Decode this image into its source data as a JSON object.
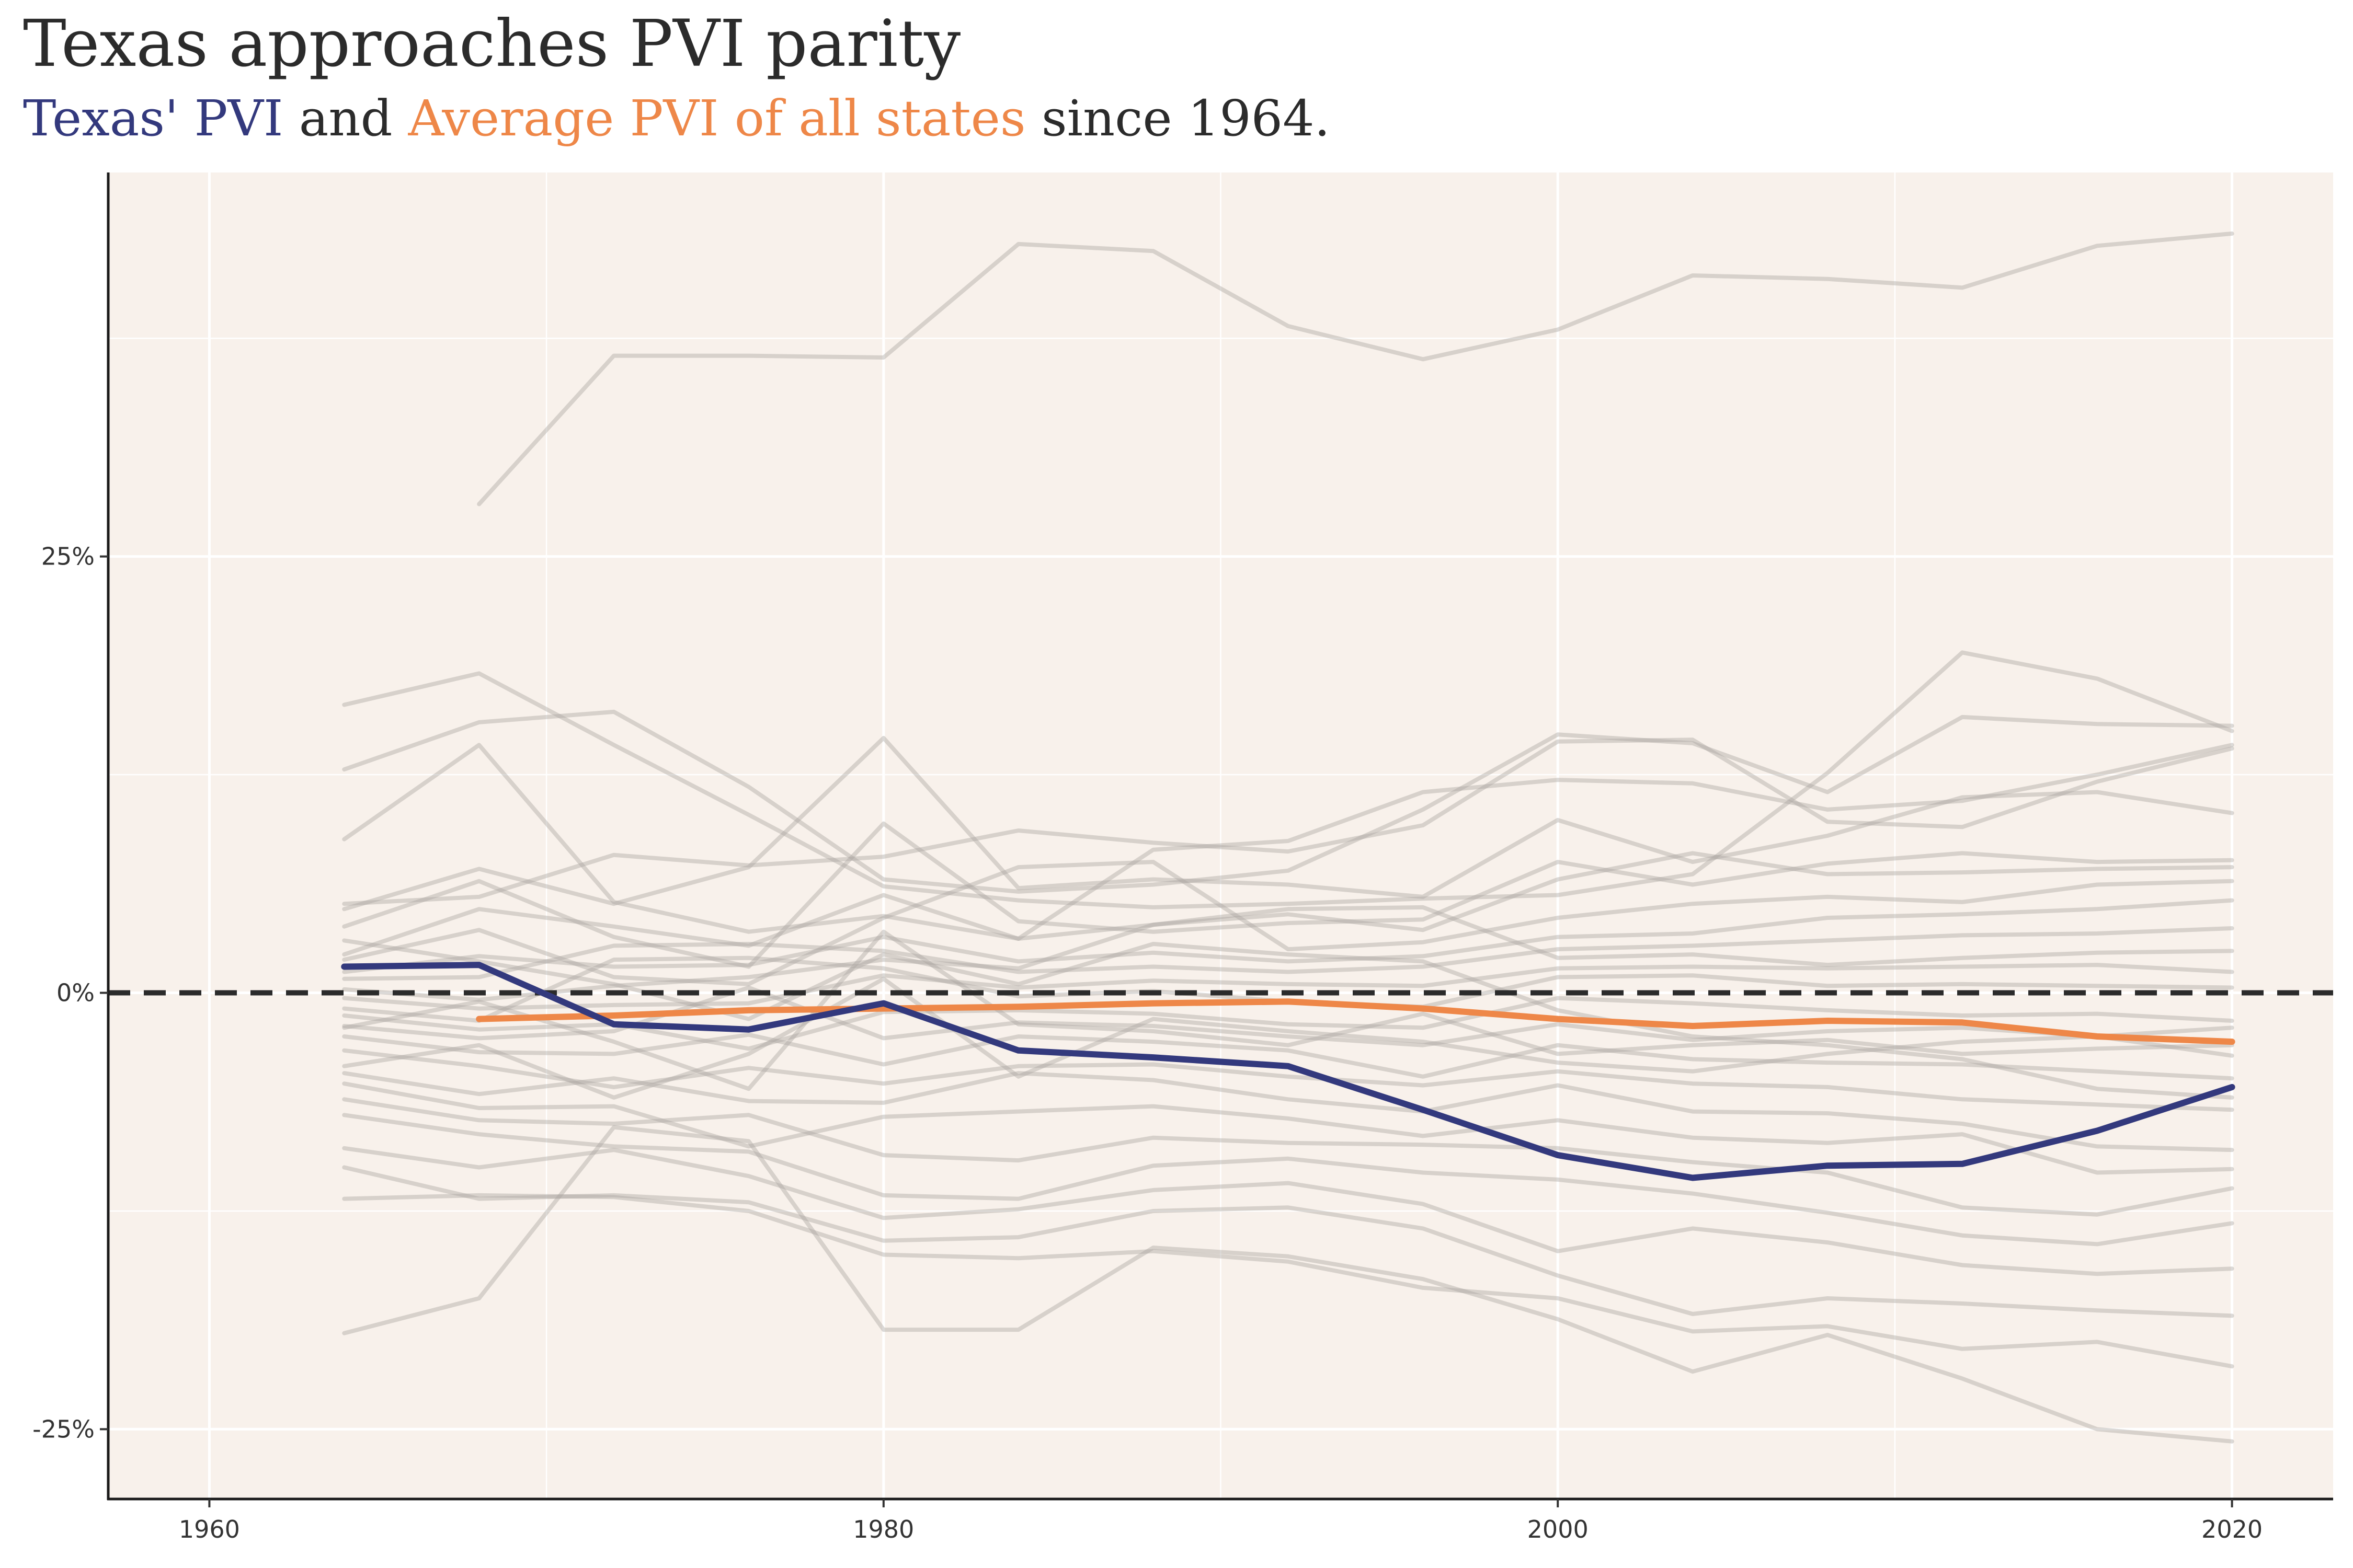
{
  "header": {
    "title": "Texas approaches PVI parity",
    "subtitle_tx": "Texas' PVI",
    "subtitle_and": " and ",
    "subtitle_avg": "Average PVI of all states",
    "subtitle_tail": " since 1964."
  },
  "colors": {
    "texas": "#33397d",
    "average": "#ee8748",
    "states": "#a9a59f",
    "panel": "#f8f1eb",
    "grid": "#ffffff",
    "zero_line": "#2b2b2b"
  },
  "chart_data": {
    "type": "line",
    "title": "Texas approaches PVI parity",
    "subtitle": "Texas' PVI and Average PVI of all states since 1964.",
    "xlabel": "",
    "ylabel": "",
    "xlim": [
      1957,
      2023
    ],
    "ylim": [
      -29,
      47
    ],
    "x_ticks": [
      1960,
      1980,
      2000,
      2020
    ],
    "x_tick_labels": [
      "1960",
      "1980",
      "2000",
      "2020"
    ],
    "y_ticks": [
      -25,
      0,
      25
    ],
    "y_tick_labels": [
      "-25%",
      "0%",
      "25%"
    ],
    "grid": true,
    "reference_line": {
      "y": 0,
      "style": "dashed"
    },
    "x": [
      1964,
      1968,
      1972,
      1976,
      1980,
      1984,
      1988,
      1992,
      1996,
      2000,
      2004,
      2008,
      2012,
      2016,
      2020
    ],
    "highlight_series": [
      {
        "name": "Texas' PVI",
        "values": [
          1.5,
          1.6,
          -1.8,
          -2.1,
          -0.6,
          -3.3,
          -3.7,
          -4.2,
          -6.7,
          -9.3,
          -10.6,
          -9.9,
          -9.8,
          -7.9,
          -5.4
        ]
      },
      {
        "name": "Average PVI of all states",
        "values": [
          null,
          -1.5,
          -1.3,
          -1.0,
          -0.9,
          -0.8,
          -0.6,
          -0.5,
          -0.9,
          -1.5,
          -1.9,
          -1.6,
          -1.7,
          -2.5,
          -2.8
        ]
      }
    ],
    "background_series": [
      {
        "values": [
          null,
          28.0,
          36.5,
          36.5,
          36.4,
          42.9,
          42.5,
          38.2,
          36.3,
          38.0,
          41.1,
          40.9,
          40.4,
          42.8,
          43.5
        ]
      },
      {
        "values": [
          16.5,
          18.3,
          14.2,
          10.2,
          6.1,
          5.3,
          4.9,
          5.1,
          5.4,
          5.6,
          6.8,
          12.6,
          19.5,
          18.0,
          15.0
        ]
      },
      {
        "values": [
          12.8,
          15.5,
          16.1,
          11.8,
          6.5,
          5.8,
          6.2,
          7.0,
          10.5,
          14.8,
          14.3,
          11.5,
          15.8,
          15.4,
          15.3
        ]
      },
      {
        "values": [
          8.8,
          14.2,
          5.2,
          3.5,
          4.4,
          3.1,
          8.2,
          8.7,
          11.5,
          12.2,
          12.0,
          10.5,
          11.0,
          12.5,
          14.2
        ]
      },
      {
        "values": [
          5.1,
          5.5,
          7.9,
          7.3,
          7.8,
          9.3,
          8.6,
          8.1,
          9.6,
          14.4,
          14.5,
          9.8,
          9.5,
          12.1,
          14.0
        ]
      },
      {
        "values": [
          4.8,
          7.1,
          5.1,
          7.2,
          14.6,
          6.0,
          6.5,
          6.2,
          5.5,
          9.9,
          7.5,
          9.0,
          11.2,
          11.5,
          10.3
        ]
      },
      {
        "values": [
          3.8,
          6.4,
          3.2,
          1.5,
          9.7,
          4.1,
          3.5,
          4.0,
          4.2,
          7.5,
          6.2,
          7.4,
          8.0,
          7.5,
          7.6
        ]
      },
      {
        "values": [
          2.2,
          4.8,
          3.8,
          2.7,
          5.6,
          3.1,
          3.9,
          4.5,
          3.6,
          6.5,
          8.0,
          6.8,
          6.9,
          7.1,
          7.2
        ]
      },
      {
        "values": [
          1.9,
          3.6,
          0.9,
          0.5,
          4.3,
          7.2,
          7.5,
          2.5,
          2.9,
          4.3,
          5.1,
          5.5,
          5.2,
          6.2,
          6.4
        ]
      },
      {
        "values": [
          1.2,
          2.1,
          1.5,
          1.6,
          3.2,
          1.8,
          2.3,
          1.8,
          2.1,
          3.2,
          3.4,
          4.3,
          4.5,
          4.8,
          5.3
        ]
      },
      {
        "values": [
          0.8,
          0.9,
          2.7,
          2.8,
          2.4,
          1.2,
          1.5,
          1.2,
          1.5,
          2.5,
          2.7,
          3.0,
          3.3,
          3.4,
          3.7
        ]
      },
      {
        "values": [
          0.2,
          -0.4,
          0.4,
          0.9,
          1.9,
          1.4,
          3.9,
          4.8,
          4.9,
          2.0,
          2.2,
          1.6,
          2.0,
          2.3,
          2.4
        ]
      },
      {
        "values": [
          -0.3,
          -0.9,
          -0.7,
          -0.6,
          1.0,
          0.3,
          0.7,
          0.5,
          0.4,
          1.4,
          1.5,
          1.4,
          1.5,
          1.6,
          1.2
        ]
      },
      {
        "values": [
          -0.9,
          -1.6,
          1.9,
          2.0,
          1.4,
          -0.2,
          0.1,
          -0.5,
          -0.8,
          0.9,
          1.0,
          0.4,
          0.5,
          0.4,
          0.3
        ]
      },
      {
        "values": [
          -1.3,
          -2.1,
          -1.8,
          -3.2,
          -1.1,
          -1.0,
          -1.2,
          -1.8,
          -2.0,
          -0.3,
          -0.6,
          -1.0,
          -1.3,
          -1.2,
          -1.6
        ]
      },
      {
        "values": [
          -1.9,
          -2.6,
          -2.2,
          0.3,
          -2.6,
          -1.7,
          -1.9,
          -2.5,
          -3.0,
          -1.8,
          -2.7,
          -2.2,
          -2.0,
          -2.5,
          -3.6
        ]
      },
      {
        "values": [
          -2.5,
          -3.4,
          -3.5,
          -2.4,
          -4.1,
          -2.5,
          -2.8,
          -3.3,
          -4.8,
          -3.0,
          -3.8,
          -4.0,
          -4.1,
          -4.5,
          -4.9
        ]
      },
      {
        "values": [
          -3.3,
          -4.2,
          -5.4,
          -4.3,
          -5.2,
          -4.2,
          -4.1,
          -4.8,
          -5.3,
          -4.5,
          -5.2,
          -5.4,
          -6.1,
          -6.4,
          -6.7
        ]
      },
      {
        "values": [
          -4.6,
          -5.8,
          -4.9,
          -6.2,
          -6.3,
          -4.6,
          -5.0,
          -6.1,
          -6.8,
          -5.3,
          -6.8,
          -6.9,
          -7.5,
          -8.8,
          -9.0
        ]
      },
      {
        "values": [
          -5.2,
          -6.6,
          -6.5,
          -8.8,
          -7.1,
          -6.8,
          -6.5,
          -7.2,
          -8.2,
          -7.3,
          -8.3,
          -8.6,
          -8.1,
          -10.3,
          -10.1
        ]
      },
      {
        "values": [
          -6.1,
          -7.3,
          -7.5,
          -7.0,
          -9.3,
          -9.6,
          -8.3,
          -8.6,
          -8.7,
          -8.9,
          -9.7,
          -10.3,
          -12.3,
          -12.7,
          -11.2
        ]
      },
      {
        "values": [
          -7.0,
          -8.1,
          -8.8,
          -9.1,
          -11.6,
          -11.8,
          -9.9,
          -9.5,
          -10.3,
          -10.7,
          -11.5,
          -12.6,
          -13.9,
          -14.4,
          -13.2
        ]
      },
      {
        "values": [
          -8.9,
          -10.0,
          -9.0,
          -10.5,
          -12.9,
          -12.4,
          -11.3,
          -10.9,
          -12.1,
          -14.8,
          -13.5,
          -14.3,
          -15.6,
          -16.1,
          -15.8
        ]
      },
      {
        "values": [
          -10.0,
          -11.8,
          -11.6,
          -12.0,
          -14.2,
          -14.0,
          -12.5,
          -12.3,
          -13.5,
          -16.2,
          -18.4,
          -17.5,
          -17.8,
          -18.2,
          -18.5
        ]
      },
      {
        "values": [
          -11.8,
          -11.6,
          -11.7,
          -12.5,
          -15.0,
          -15.2,
          -14.8,
          -15.4,
          -16.9,
          -17.5,
          -19.4,
          -19.1,
          -20.4,
          -20.0,
          -21.4
        ]
      },
      {
        "values": [
          -19.5,
          -17.5,
          -7.7,
          -8.5,
          -19.3,
          -19.3,
          -14.6,
          -15.1,
          -16.4,
          -18.7,
          -21.7,
          -19.6,
          -22.1,
          -25.0,
          -25.7
        ]
      },
      {
        "values": [
          -4.2,
          -3.0,
          -6.0,
          -3.5,
          0.8,
          -4.8,
          -1.5,
          -2.2,
          -2.8,
          -4.0,
          -4.5,
          -3.5,
          -2.8,
          -2.5,
          -2.0
        ]
      },
      {
        "values": [
          -2.0,
          -0.5,
          -2.8,
          -5.5,
          3.5,
          -1.8,
          -2.2,
          -3.0,
          -1.2,
          -3.5,
          -3.0,
          -2.7,
          -3.5,
          -3.2,
          -3.0
        ]
      },
      {
        "values": [
          3.0,
          1.8,
          0.5,
          -1.5,
          2.2,
          0.5,
          2.8,
          2.2,
          1.8,
          -1.0,
          -2.5,
          -3.0,
          -3.8,
          -5.5,
          -6.0
        ]
      }
    ]
  }
}
